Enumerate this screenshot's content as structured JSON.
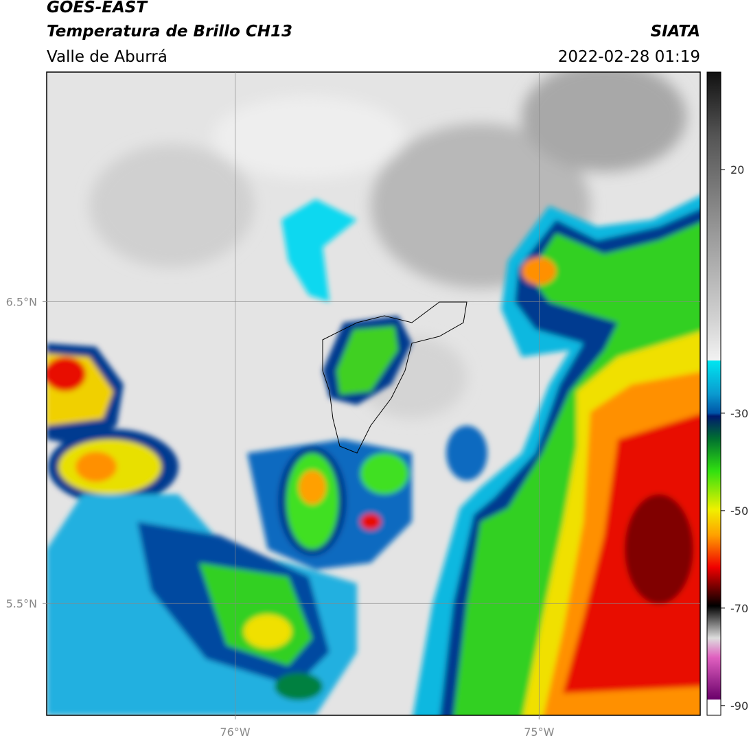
{
  "header": {
    "title": "GOES-EAST",
    "subtitle": "Temperatura de Brillo CH13",
    "region": "Valle de Aburrá",
    "source": "SIATA",
    "datetime": "2022-02-28 01:19"
  },
  "map": {
    "xlim": [
      -76.62,
      -74.47
    ],
    "ylim": [
      5.13,
      7.26
    ],
    "xticks": [
      {
        "value": -76,
        "label": "76°W"
      },
      {
        "value": -75,
        "label": "75°W"
      }
    ],
    "yticks": [
      {
        "value": 6.5,
        "label": "6.5°N"
      },
      {
        "value": 5.5,
        "label": "5.5°N"
      }
    ],
    "grid": true
  },
  "colorbar": {
    "lim": [
      -92,
      40
    ],
    "ticks": [
      20,
      -30,
      -50,
      -70,
      -90
    ]
  }
}
